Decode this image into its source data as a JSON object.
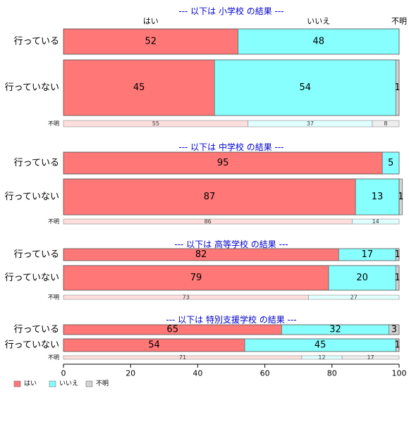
{
  "chart_data": {
    "type": "bar",
    "orientation": "horizontal",
    "stacked": true,
    "xlim": [
      0,
      100
    ],
    "x_ticks": [
      0,
      20,
      40,
      60,
      80,
      100
    ],
    "series_names": [
      "はい",
      "いいえ",
      "不明"
    ],
    "colors": {
      "はい": "#ff7777",
      "いいえ": "#88ffff",
      "不明": "#d3d3d3",
      "title": "#0000cc"
    },
    "header_labels": [
      "はい",
      "いいえ",
      "不明"
    ],
    "legend": {
      "position": "bottom-left",
      "entries": [
        {
          "label": "はい",
          "color": "#ff7777"
        },
        {
          "label": "いいえ",
          "color": "#88ffff"
        },
        {
          "label": "不明",
          "color": "#d3d3d3"
        }
      ]
    },
    "panels": [
      {
        "title": "--- 以下は 小学校 の結果 ---",
        "rows": [
          {
            "label": "行っている",
            "values": [
              52,
              48,
              0
            ],
            "value_labels": [
              "52",
              "48",
              ""
            ]
          },
          {
            "label": "行っていない",
            "values": [
              45,
              54,
              1
            ],
            "value_labels": [
              "45",
              "54",
              "1"
            ]
          }
        ],
        "unknown": {
          "label": "不明",
          "values": [
            55,
            37,
            8
          ],
          "value_labels": [
            "55",
            "37",
            "8"
          ]
        }
      },
      {
        "title": "--- 以下は 中学校 の結果 ---",
        "rows": [
          {
            "label": "行っている",
            "values": [
              95,
              5,
              0
            ],
            "value_labels": [
              "95",
              "5",
              ""
            ]
          },
          {
            "label": "行っていない",
            "values": [
              87,
              13,
              1
            ],
            "value_labels": [
              "87",
              "13",
              "1"
            ]
          }
        ],
        "unknown": {
          "label": "不明",
          "values": [
            86,
            14,
            0
          ],
          "value_labels": [
            "86",
            "14",
            ""
          ]
        }
      },
      {
        "title": "--- 以下は 高等学校 の結果 ---",
        "rows": [
          {
            "label": "行っている",
            "values": [
              82,
              17,
              1
            ],
            "value_labels": [
              "82",
              "17",
              "1"
            ]
          },
          {
            "label": "行っていない",
            "values": [
              79,
              20,
              1
            ],
            "value_labels": [
              "79",
              "20",
              "1"
            ]
          }
        ],
        "unknown": {
          "label": "不明",
          "values": [
            73,
            27,
            0
          ],
          "value_labels": [
            "73",
            "27",
            ""
          ]
        }
      },
      {
        "title": "--- 以下は 特別支援学校 の結果 ---",
        "rows": [
          {
            "label": "行っている",
            "values": [
              65,
              32,
              3
            ],
            "value_labels": [
              "65",
              "32",
              "3"
            ]
          },
          {
            "label": "行っていない",
            "values": [
              54,
              45,
              1
            ],
            "value_labels": [
              "54",
              "45",
              "1"
            ]
          }
        ],
        "unknown": {
          "label": "不明",
          "values": [
            71,
            12,
            17
          ],
          "value_labels": [
            "71",
            "12",
            "17"
          ]
        }
      }
    ]
  }
}
